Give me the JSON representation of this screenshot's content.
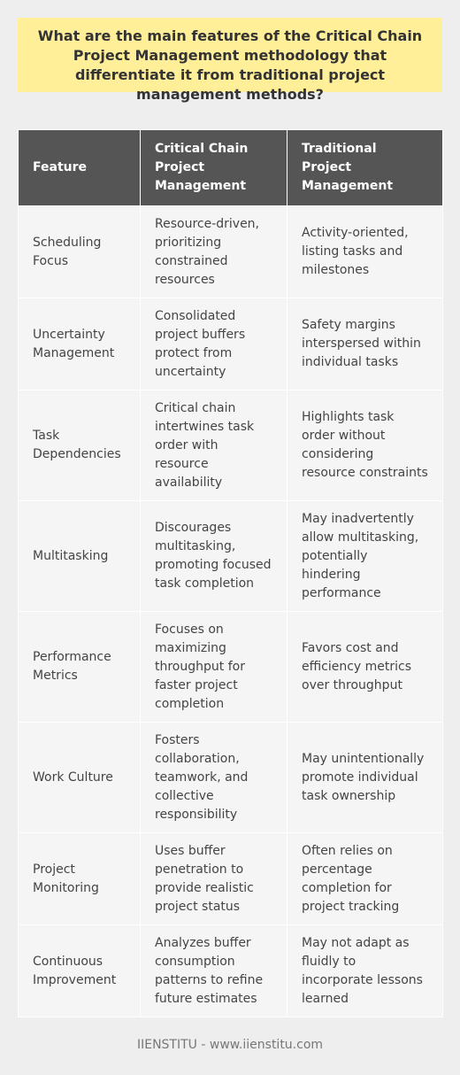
{
  "title": "What are the main features of the Critical Chain Project Management methodology that differentiate it from traditional project management methods?",
  "table": {
    "headers": [
      "Feature",
      "Critical Chain Project Management",
      "Traditional Project Management"
    ],
    "rows": [
      [
        "Scheduling Focus",
        "Resource-driven, prioritizing constrained resources",
        "Activity-oriented, listing tasks and milestones"
      ],
      [
        "Uncertainty Management",
        "Consolidated project buffers protect from uncertainty",
        "Safety margins interspersed within individual tasks"
      ],
      [
        "Task Dependencies",
        "Critical chain intertwines task order with resource availability",
        "Highlights task order without considering resource constraints"
      ],
      [
        "Multitasking",
        "Discourages multitasking, promoting focused task completion",
        "May inadvertently allow multitasking, potentially hindering performance"
      ],
      [
        "Performance Metrics",
        "Focuses on maximizing throughput for faster project completion",
        "Favors cost and efficiency metrics over throughput"
      ],
      [
        "Work Culture",
        "Fosters collaboration, teamwork, and collective responsibility",
        "May unintentionally promote individual task ownership"
      ],
      [
        "Project Monitoring",
        "Uses buffer penetration to provide realistic project status",
        "Often relies on percentage completion for project tracking"
      ],
      [
        "Continuous Improvement",
        "Analyzes buffer consumption patterns to refine future estimates",
        "May not adapt as fluidly to incorporate lessons learned"
      ]
    ]
  },
  "footer": "IIENSTITU - www.iienstitu.com"
}
